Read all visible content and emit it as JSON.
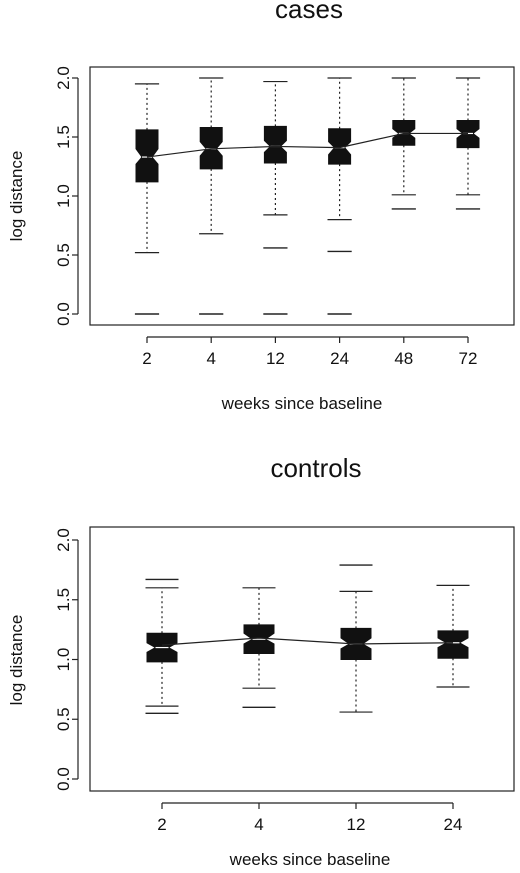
{
  "chart_data": [
    {
      "type": "boxplot",
      "title": "cases",
      "xlabel": "weeks since baseline",
      "ylabel": "log distance",
      "ylim": [
        0.0,
        2.0
      ],
      "yticks": [
        "0.0",
        "0.5",
        "1.0",
        "1.5",
        "2.0"
      ],
      "categories": [
        "2",
        "4",
        "12",
        "24",
        "48",
        "72"
      ],
      "notched": true,
      "boxes": [
        {
          "q1": 1.12,
          "median": 1.33,
          "q3": 1.56,
          "notch_low": 1.27,
          "notch_high": 1.4,
          "whisker_low": 0.52,
          "whisker_high": 1.95,
          "outliers": [
            0.0
          ]
        },
        {
          "q1": 1.23,
          "median": 1.4,
          "q3": 1.58,
          "notch_low": 1.34,
          "notch_high": 1.46,
          "whisker_low": 0.68,
          "whisker_high": 2.0,
          "outliers": [
            0.0
          ]
        },
        {
          "q1": 1.28,
          "median": 1.42,
          "q3": 1.59,
          "notch_low": 1.37,
          "notch_high": 1.47,
          "whisker_low": 0.84,
          "whisker_high": 1.97,
          "outliers": [
            0.56,
            0.0
          ]
        },
        {
          "q1": 1.27,
          "median": 1.41,
          "q3": 1.57,
          "notch_low": 1.35,
          "notch_high": 1.46,
          "whisker_low": 0.8,
          "whisker_high": 2.0,
          "outliers": [
            0.53,
            0.0
          ]
        },
        {
          "q1": 1.43,
          "median": 1.53,
          "q3": 1.64,
          "notch_low": 1.49,
          "notch_high": 1.57,
          "whisker_low": 1.01,
          "whisker_high": 2.0,
          "outliers": [
            0.89
          ]
        },
        {
          "q1": 1.41,
          "median": 1.53,
          "q3": 1.64,
          "notch_low": 1.49,
          "notch_high": 1.57,
          "whisker_low": 1.01,
          "whisker_high": 2.0,
          "outliers": [
            0.89
          ]
        }
      ],
      "mean_line": [
        1.33,
        1.4,
        1.42,
        1.41,
        1.53,
        1.53
      ]
    },
    {
      "type": "boxplot",
      "title": "controls",
      "xlabel": "weeks since baseline",
      "ylabel": "log distance",
      "ylim": [
        0.0,
        2.0
      ],
      "yticks": [
        "0.0",
        "0.5",
        "1.0",
        "1.5",
        "2.0"
      ],
      "categories": [
        "2",
        "4",
        "12",
        "24"
      ],
      "notched": true,
      "boxes": [
        {
          "q1": 0.98,
          "median": 1.1,
          "q3": 1.22,
          "notch_low": 1.06,
          "notch_high": 1.14,
          "whisker_low": 0.61,
          "whisker_high": 1.6,
          "outliers": [
            0.55,
            1.67
          ]
        },
        {
          "q1": 1.05,
          "median": 1.17,
          "q3": 1.29,
          "notch_low": 1.13,
          "notch_high": 1.22,
          "whisker_low": 0.76,
          "whisker_high": 1.6,
          "outliers": [
            0.6
          ]
        },
        {
          "q1": 1.0,
          "median": 1.13,
          "q3": 1.26,
          "notch_low": 1.09,
          "notch_high": 1.18,
          "whisker_low": 0.56,
          "whisker_high": 1.57,
          "outliers": [
            1.79
          ]
        },
        {
          "q1": 1.01,
          "median": 1.14,
          "q3": 1.24,
          "notch_low": 1.1,
          "notch_high": 1.18,
          "whisker_low": 0.77,
          "whisker_high": 1.62,
          "outliers": []
        }
      ],
      "mean_line": [
        1.12,
        1.18,
        1.13,
        1.14
      ]
    }
  ]
}
